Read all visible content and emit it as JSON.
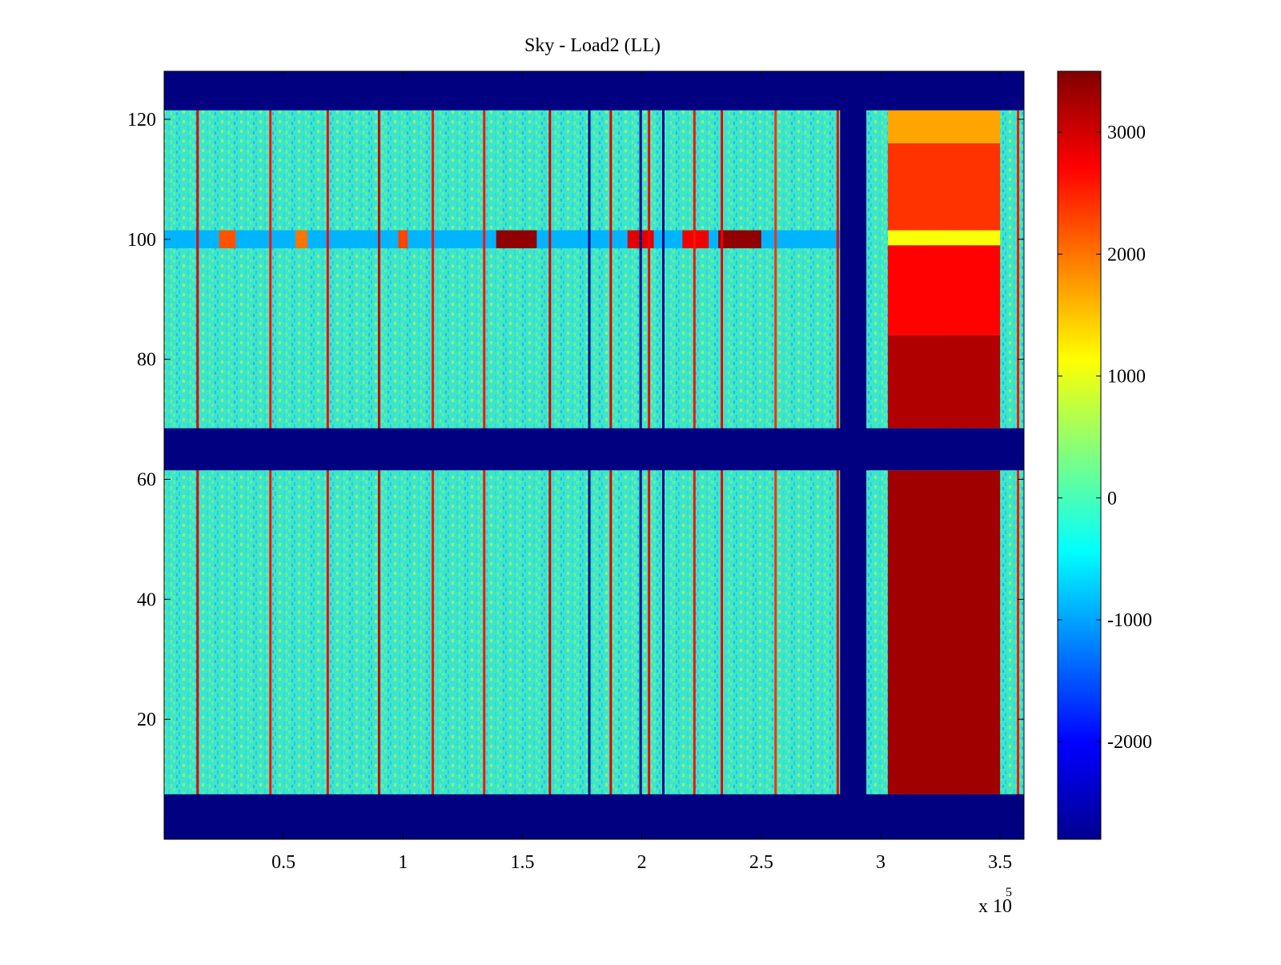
{
  "chart_data": {
    "type": "heatmap",
    "title": "Sky - Load2 (LL)",
    "xlabel": "",
    "ylabel": "",
    "x_exponent_label": "x 10",
    "x_exponent_power": "5",
    "xlim": [
      0,
      360000
    ],
    "ylim": [
      0,
      128
    ],
    "xticks": [
      {
        "value": 50000,
        "label": "0.5"
      },
      {
        "value": 100000,
        "label": "1"
      },
      {
        "value": 150000,
        "label": "1.5"
      },
      {
        "value": 200000,
        "label": "2"
      },
      {
        "value": 250000,
        "label": "2.5"
      },
      {
        "value": 300000,
        "label": "3"
      },
      {
        "value": 350000,
        "label": "3.5"
      }
    ],
    "yticks": [
      {
        "value": 20,
        "label": "20"
      },
      {
        "value": 40,
        "label": "40"
      },
      {
        "value": 60,
        "label": "60"
      },
      {
        "value": 80,
        "label": "80"
      },
      {
        "value": 100,
        "label": "100"
      },
      {
        "value": 120,
        "label": "120"
      }
    ],
    "colorbar": {
      "colormap": "jet",
      "range": [
        -2800,
        3500
      ],
      "ticks": [
        {
          "value": 3000,
          "label": "3000"
        },
        {
          "value": 2000,
          "label": "2000"
        },
        {
          "value": 1000,
          "label": "1000"
        },
        {
          "value": 0,
          "label": "0"
        },
        {
          "value": -1000,
          "label": "-1000"
        },
        {
          "value": -2000,
          "label": "-2000"
        }
      ]
    },
    "background_value": 0,
    "masked_value": -2800,
    "masked_rows": [
      [
        0,
        7.5
      ],
      [
        61.5,
        68.5
      ],
      [
        121.5,
        128
      ]
    ],
    "regions": [
      {
        "x": [
          283000,
          294000
        ],
        "y": [
          0,
          128
        ],
        "value": -2800
      },
      {
        "x": [
          303000,
          350000
        ],
        "y": [
          7.5,
          61.5
        ],
        "value": 3300
      },
      {
        "x": [
          303000,
          350000
        ],
        "y": [
          68.5,
          84
        ],
        "value": 3200
      },
      {
        "x": [
          303000,
          350000
        ],
        "y": [
          84,
          99
        ],
        "value": 2700
      },
      {
        "x": [
          303000,
          350000
        ],
        "y": [
          99,
          101.5
        ],
        "value": 1100
      },
      {
        "x": [
          303000,
          350000
        ],
        "y": [
          101.5,
          116
        ],
        "value": 2400
      },
      {
        "x": [
          303000,
          350000
        ],
        "y": [
          116,
          121.5
        ],
        "value": 1700
      }
    ],
    "row_band": {
      "y": [
        98.5,
        101.5
      ],
      "x": [
        0,
        283000
      ],
      "value": -900
    },
    "row_band_hot_spots": [
      {
        "x": [
          139000,
          156000
        ],
        "value": 3400
      },
      {
        "x": [
          194000,
          205000
        ],
        "value": 2900
      },
      {
        "x": [
          217000,
          228000
        ],
        "value": 2800
      },
      {
        "x": [
          232000,
          250000
        ],
        "value": 3400
      },
      {
        "x": [
          23000,
          30000
        ],
        "value": 2200
      },
      {
        "x": [
          55000,
          60000
        ],
        "value": 2000
      },
      {
        "x": [
          98000,
          102000
        ],
        "value": 2300
      }
    ],
    "stripes": [
      {
        "x": 14000,
        "value": 2900
      },
      {
        "x": 44500,
        "value": 2600
      },
      {
        "x": 68500,
        "value": 2700
      },
      {
        "x": 90000,
        "value": 3000
      },
      {
        "x": 112500,
        "value": 2600
      },
      {
        "x": 134000,
        "value": 2600
      },
      {
        "x": 161500,
        "value": 3000
      },
      {
        "x": 178000,
        "value": -2800
      },
      {
        "x": 187000,
        "value": 2900
      },
      {
        "x": 199500,
        "value": -2800
      },
      {
        "x": 203000,
        "value": 2700
      },
      {
        "x": 209000,
        "value": -2800
      },
      {
        "x": 222000,
        "value": 2600
      },
      {
        "x": 233500,
        "value": 2800
      },
      {
        "x": 256000,
        "value": 2400
      },
      {
        "x": 282000,
        "value": 2800
      },
      {
        "x": 357500,
        "value": 2600
      }
    ]
  }
}
